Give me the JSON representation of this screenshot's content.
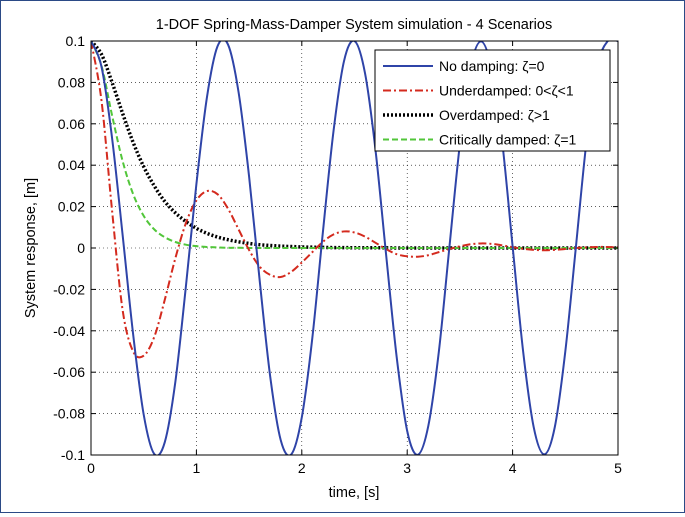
{
  "chart_data": {
    "type": "line",
    "title": "1-DOF Spring-Mass-Damper System simulation - 4 Scenarios",
    "xlabel": "time, [s]",
    "ylabel": "System response, [m]",
    "xlim": [
      0,
      5
    ],
    "ylim": [
      -0.1,
      0.1
    ],
    "xticks": [
      0,
      1,
      2,
      3,
      4,
      5
    ],
    "xtick_labels": [
      "0",
      "1",
      "2",
      "3",
      "4",
      "5"
    ],
    "yticks": [
      -0.1,
      -0.08,
      -0.06,
      -0.04,
      -0.02,
      0,
      0.02,
      0.04,
      0.06,
      0.08,
      0.1
    ],
    "ytick_labels": [
      "-0.1",
      "-0.08",
      "-0.06",
      "-0.04",
      "-0.02",
      "0",
      "0.02",
      "0.04",
      "0.06",
      "0.08",
      "0.1"
    ],
    "grid": true,
    "legend_position": "top-right",
    "x": [
      0,
      0.1,
      0.2,
      0.3,
      0.4,
      0.5,
      0.6,
      0.7,
      0.8,
      0.9,
      1.0,
      1.1,
      1.2,
      1.3,
      1.4,
      1.5,
      1.6,
      1.7,
      1.8,
      1.9,
      2.0,
      2.1,
      2.2,
      2.3,
      2.4,
      2.5,
      2.6,
      2.7,
      2.8,
      2.9,
      3.0,
      3.1,
      3.2,
      3.3,
      3.4,
      3.5,
      3.6,
      3.7,
      3.8,
      3.9,
      4.0,
      4.1,
      4.2,
      4.3,
      4.4,
      4.5,
      4.6,
      4.7,
      4.8,
      4.9,
      5.0
    ],
    "series": [
      {
        "name": "No damping: ζ=0",
        "color": "#2f44a8",
        "dash": "solid",
        "values": [
          0.1,
          0.0875,
          0.0531,
          0.0063,
          -0.0418,
          -0.0805,
          -0.0995,
          -0.0938,
          -0.0648,
          -0.0187,
          0.0309,
          0.0728,
          0.0974,
          0.0983,
          0.0753,
          0.0345,
          -0.0155,
          -0.062,
          -0.0928,
          -0.0997,
          -0.0818,
          -0.0434,
          0.0076,
          0.0561,
          0.0902,
          0.1,
          0.0844,
          0.047,
          -0.0033,
          -0.0526,
          -0.0884,
          -0.0999,
          -0.086,
          -0.0502,
          0.0002,
          0.0503,
          0.0869,
          0.0998,
          0.0868,
          0.0519,
          0.0008,
          -0.05,
          -0.0865,
          -0.0997,
          -0.0866,
          -0.05,
          0.0002,
          0.051,
          0.0871,
          0.0998,
          0.1
        ]
      },
      {
        "name": "Underdamped: 0<ζ<1",
        "color": "#d42a1e",
        "dash": "dashdot",
        "values": [
          0.1,
          0.071,
          0.018,
          -0.03,
          -0.05,
          -0.052,
          -0.043,
          -0.025,
          -0.005,
          0.012,
          0.023,
          0.0275,
          0.026,
          0.019,
          0.009,
          -0.001,
          -0.009,
          -0.013,
          -0.014,
          -0.0115,
          -0.007,
          -0.002,
          0.003,
          0.0065,
          0.008,
          0.0075,
          0.0055,
          0.0025,
          -0.0005,
          -0.003,
          -0.004,
          -0.0042,
          -0.0035,
          -0.002,
          -0.0005,
          0.0008,
          0.0018,
          0.0022,
          0.002,
          0.0013,
          0.0004,
          -0.0004,
          -0.0009,
          -0.0011,
          -0.0009,
          -0.0005,
          0.0,
          0.0003,
          0.0005,
          0.0005,
          0.0003
        ]
      },
      {
        "name": "Overdamped: ζ>1",
        "color": "#000000",
        "dash": "dotted",
        "values": [
          0.1,
          0.0935,
          0.08,
          0.065,
          0.051,
          0.0393,
          0.03,
          0.0225,
          0.017,
          0.0128,
          0.0095,
          0.0071,
          0.0053,
          0.004,
          0.003,
          0.0022,
          0.0016,
          0.0012,
          0.0009,
          0.0007,
          0.0005,
          0.0004,
          0.0003,
          0.0002,
          0.0002,
          0.0001,
          0.0001,
          0.0001,
          0.0001,
          0.0,
          0.0,
          0.0,
          0.0,
          0.0,
          0.0,
          0.0,
          0.0,
          0.0,
          0.0,
          0.0,
          0.0,
          0.0,
          0.0,
          0.0,
          0.0,
          0.0,
          0.0,
          0.0,
          0.0,
          0.0,
          0.0
        ]
      },
      {
        "name": "Critically damped: ζ=1",
        "color": "#52c63a",
        "dash": "dashed",
        "values": [
          0.1,
          0.088,
          0.064,
          0.042,
          0.026,
          0.0155,
          0.009,
          0.0052,
          0.0029,
          0.0016,
          0.0009,
          0.0005,
          0.0003,
          0.0001,
          0.0001,
          0.0,
          0.0,
          0.0,
          0.0,
          0.0,
          0.0,
          0.0,
          0.0,
          0.0,
          0.0,
          0.0,
          0.0,
          0.0,
          0.0,
          0.0,
          0.0,
          0.0,
          0.0,
          0.0,
          0.0,
          0.0,
          0.0,
          0.0,
          0.0,
          0.0,
          0.0,
          0.0,
          0.0,
          0.0,
          0.0,
          0.0,
          0.0,
          0.0,
          0.0,
          0.0,
          0.0
        ]
      }
    ]
  }
}
